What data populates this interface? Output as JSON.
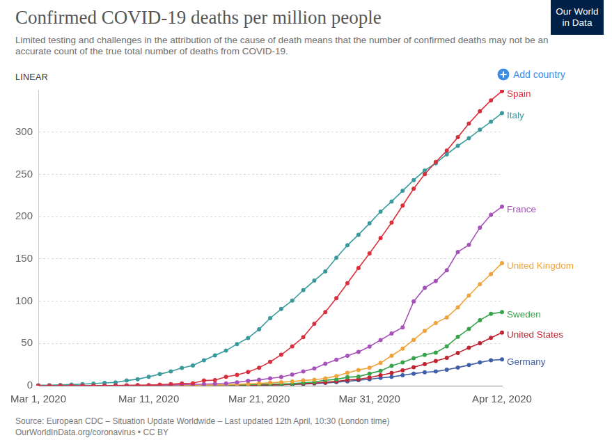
{
  "chart_data": {
    "type": "line",
    "title": "Confirmed COVID-19 deaths per million people",
    "subtitle": "Limited testing and challenges in the attribution of the cause of death means that the number of confirmed deaths may not be an accurate count of the true total number of deaths from COVID-19.",
    "annotations": [
      "LINEAR",
      "Add country"
    ],
    "logo": [
      "Our World",
      "in Data"
    ],
    "source": "Source: European CDC – Situation Update Worldwide – Last updated 12th April, 10:30 (London time)",
    "footer": "OurWorldInData.org/coronavirus • CC BY",
    "categories": [
      "Mar 1, 2020",
      null,
      null,
      null,
      null,
      null,
      null,
      null,
      null,
      null,
      "Mar 11, 2020",
      null,
      null,
      null,
      null,
      null,
      null,
      null,
      null,
      null,
      "Mar 21, 2020",
      null,
      null,
      null,
      null,
      null,
      null,
      null,
      null,
      null,
      "Mar 31, 2020",
      null,
      null,
      null,
      null,
      null,
      null,
      null,
      null,
      null,
      null,
      null,
      "Apr 12, 2020"
    ],
    "series": [
      {
        "name": "Spain",
        "color": "#d9303e",
        "values": [
          0,
          0,
          0,
          0,
          0,
          0.1,
          0.1,
          0.2,
          0.4,
          0.6,
          0.7,
          1.2,
          1.8,
          2.6,
          2.9,
          6.1,
          6.6,
          10.5,
          12.7,
          16.3,
          21.3,
          28.2,
          36.6,
          46.5,
          57.4,
          73.2,
          87.1,
          103.5,
          121.2,
          139.1,
          156.4,
          174.5,
          192.9,
          213.1,
          233.0,
          250.2,
          264.5,
          278.1,
          293.9,
          310.1,
          324.6,
          337.5,
          348.4
        ]
      },
      {
        "name": "Italy",
        "color": "#3a9a9d",
        "values": [
          0.5,
          0.6,
          0.9,
          1.3,
          1.8,
          2.5,
          3.3,
          3.9,
          6.1,
          7.7,
          10.5,
          13.7,
          16.8,
          21.0,
          23.9,
          30.0,
          35.8,
          41.5,
          49.3,
          56.4,
          66.8,
          79.9,
          90.7,
          100.7,
          113.0,
          124.3,
          135.3,
          151.3,
          166.1,
          178.6,
          192.0,
          205.9,
          217.9,
          230.5,
          243.2,
          254.5,
          263.2,
          273.7,
          283.7,
          292.7,
          302.8,
          312.3,
          322.5
        ]
      },
      {
        "name": "France",
        "color": "#a652ba",
        "values": [
          0,
          0,
          0,
          0,
          0.1,
          0.1,
          0.1,
          0.2,
          0.3,
          0.4,
          0.5,
          0.7,
          0.9,
          1.2,
          1.4,
          1.9,
          2.3,
          2.7,
          4.0,
          5.7,
          6.9,
          8.6,
          10.3,
          13.2,
          16.8,
          20.4,
          26.0,
          30.6,
          35.4,
          39.9,
          46.3,
          54.0,
          61.8,
          69.0,
          99.7,
          115.8,
          123.7,
          136.5,
          158.2,
          166.5,
          187.0,
          202.1,
          211.8
        ]
      },
      {
        "name": "United Kingdom",
        "color": "#f0a33a",
        "values": [
          0,
          0,
          0,
          0,
          0,
          0,
          0,
          0,
          0,
          0.1,
          0.1,
          0.1,
          0.2,
          0.3,
          0.3,
          0.5,
          0.8,
          1.1,
          1.6,
          2.2,
          2.7,
          3.5,
          4.2,
          5.0,
          6.3,
          7.0,
          8.7,
          11.4,
          15.3,
          18.5,
          21.2,
          26.9,
          35.4,
          43.9,
          54.2,
          64.9,
          74.2,
          80.8,
          92.6,
          106.7,
          120.0,
          132.0,
          145.0
        ]
      },
      {
        "name": "Sweden",
        "color": "#37a34a",
        "values": [
          0,
          0,
          0,
          0,
          0,
          0,
          0,
          0,
          0,
          0,
          0,
          0,
          0.1,
          0.1,
          0.2,
          0.3,
          0.6,
          0.7,
          1.0,
          1.0,
          1.6,
          2.0,
          2.1,
          2.4,
          3.5,
          4.3,
          6.5,
          7.5,
          10.0,
          10.8,
          14.3,
          17.6,
          23.4,
          27.6,
          32.6,
          36.5,
          39.2,
          46.6,
          57.8,
          67.2,
          77.5,
          85.0,
          87.0
        ]
      },
      {
        "name": "United States",
        "color": "#bf2430",
        "values": [
          0,
          0,
          0,
          0,
          0,
          0,
          0,
          0,
          0.1,
          0.1,
          0.1,
          0.1,
          0.1,
          0.1,
          0.1,
          0.2,
          0.2,
          0.3,
          0.3,
          0.5,
          0.8,
          0.9,
          1.3,
          1.7,
          2.4,
          3.1,
          4.0,
          5.2,
          6.7,
          7.6,
          9.7,
          12.4,
          15.1,
          18.1,
          21.8,
          25.6,
          29.3,
          32.9,
          38.8,
          44.8,
          50.2,
          56.6,
          62.8
        ]
      },
      {
        "name": "Germany",
        "color": "#3f5fa8",
        "values": [
          0,
          0,
          0,
          0,
          0,
          0,
          0,
          0,
          0,
          0,
          0,
          0.1,
          0.1,
          0.1,
          0.1,
          0.1,
          0.2,
          0.3,
          0.3,
          0.5,
          0.6,
          0.8,
          1.0,
          1.5,
          1.9,
          2.6,
          3.2,
          4.2,
          5.2,
          6.5,
          7.6,
          9.3,
          10.4,
          12.4,
          14.3,
          15.8,
          16.8,
          19.0,
          21.5,
          24.4,
          27.5,
          30.0,
          31.0
        ]
      }
    ],
    "ylim": [
      0,
      350
    ],
    "yticks": [
      0,
      50,
      100,
      150,
      200,
      250,
      300
    ],
    "grid": true,
    "marker": "circle"
  }
}
